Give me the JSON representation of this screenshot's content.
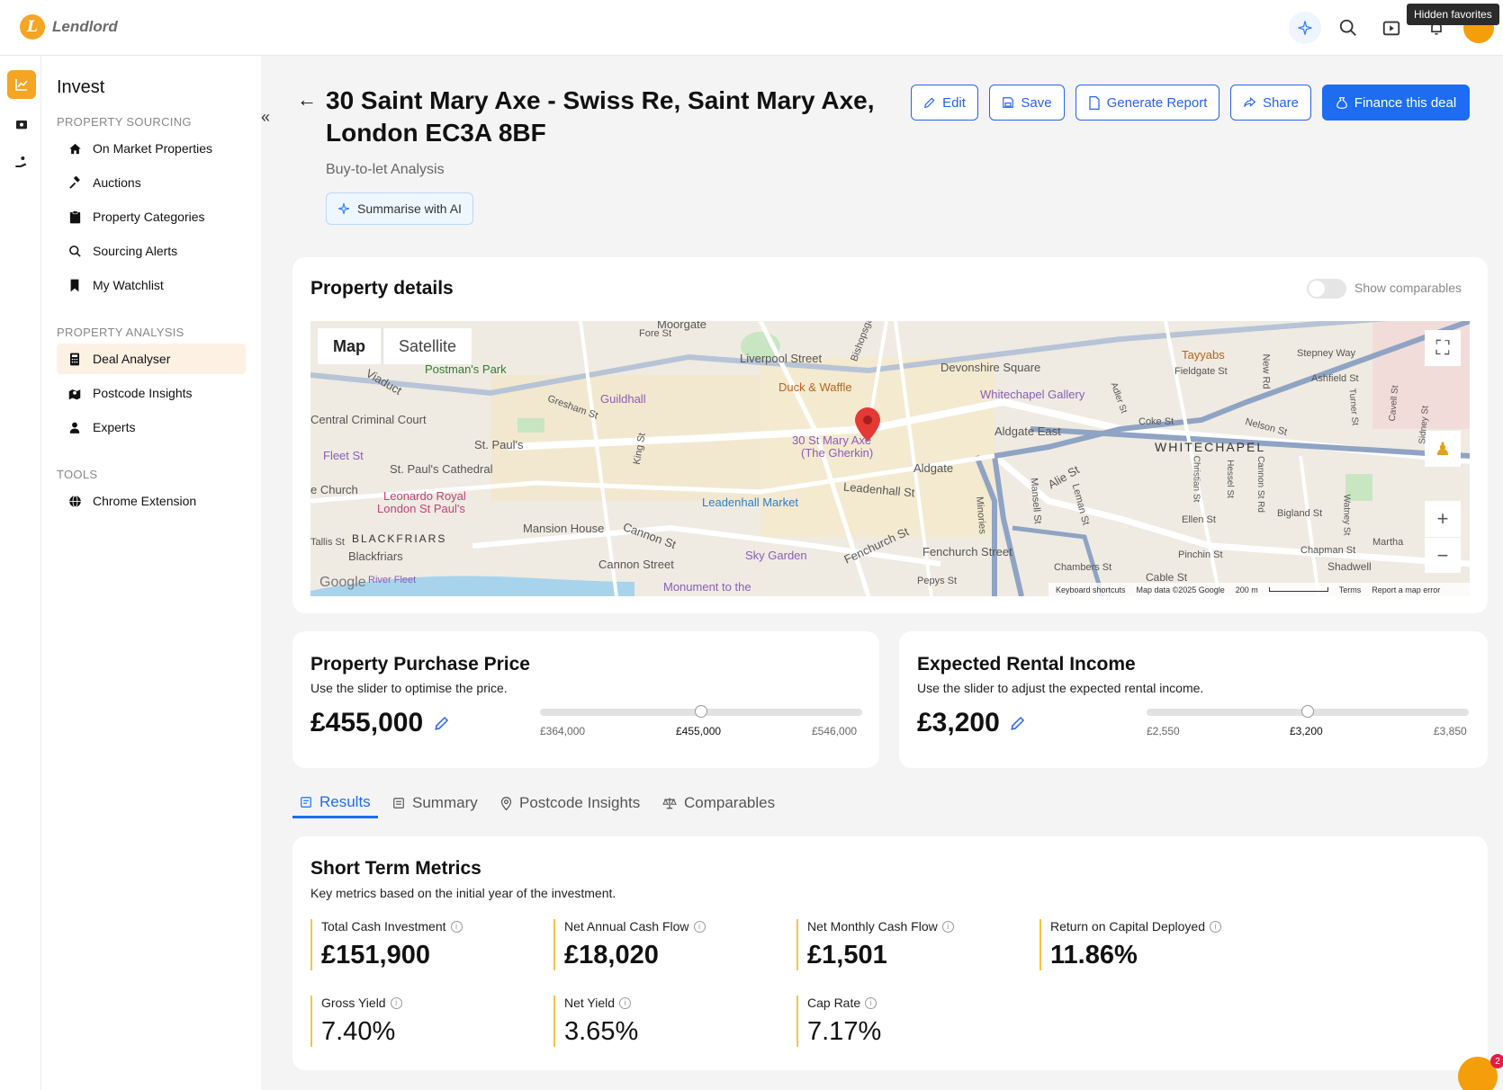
{
  "app": {
    "name": "Lendlord",
    "tooltip": "Hidden favorites"
  },
  "sidebar": {
    "title": "Invest",
    "sections": [
      {
        "label": "PROPERTY SOURCING",
        "items": [
          "On Market Properties",
          "Auctions",
          "Property Categories",
          "Sourcing Alerts",
          "My Watchlist"
        ]
      },
      {
        "label": "PROPERTY ANALYSIS",
        "items": [
          "Deal Analyser",
          "Postcode Insights",
          "Experts"
        ]
      },
      {
        "label": "TOOLS",
        "items": [
          "Chrome Extension"
        ]
      }
    ],
    "active_item": "Deal Analyser"
  },
  "header": {
    "title": "30 Saint Mary Axe - Swiss Re, Saint Mary Axe, London EC3A 8BF",
    "subtitle": "Buy-to-let Analysis",
    "ai_button": "Summarise with AI",
    "actions": [
      "Edit",
      "Save",
      "Generate Report",
      "Share",
      "Finance this deal"
    ]
  },
  "property_details": {
    "title": "Property details",
    "toggle_label": "Show comparables",
    "map_tabs": [
      "Map",
      "Satellite"
    ],
    "map_labels": [
      "Moorgate",
      "Fore St",
      "Liverpool Street",
      "Postman's Park",
      "Guildhall",
      "Gresham St",
      "Duck & Waffle",
      "Devonshire Square",
      "Whitechapel Gallery",
      "Tayyabs",
      "Fieldgate St",
      "Stepney Way",
      "New Rd",
      "Ashfield St",
      "Central Criminal Court",
      "St. Paul's",
      "St. Paul's Cathedral",
      "Fleet St",
      "King St",
      "30 St Mary Axe",
      "(The Gherkin)",
      "Aldgate East",
      "Aldgate",
      "Coke St",
      "Nelson St",
      "WHITECHAPEL",
      "Leadenhall St",
      "Leadenhall Market",
      "Alie St",
      "Leonardo Royal",
      "London St Paul's",
      "Mansion House",
      "Cannon St",
      "BLACKFRIARS",
      "Blackfriars",
      "Tallis St",
      "Sky Garden",
      "Fenchurch St",
      "Fenchurch Street",
      "Cannon Street",
      "Ellen St",
      "Bigland St",
      "Pinchin St",
      "Chapman St",
      "Shadwell",
      "Chambers St",
      "Cable St",
      "Pepys St",
      "River Fleet",
      "Monument to the",
      "Mansell St",
      "Leman St",
      "Minories",
      "Christian St",
      "Hessel St",
      "Cannon St Rd",
      "Watney St",
      "Martha",
      "Bishopsgate",
      "Adler St",
      "Turner St",
      "Cavell St",
      "Sidney St",
      "e Church",
      "Viaduct"
    ],
    "map_footer": [
      "Keyboard shortcuts",
      "Map data ©2025 Google",
      "200 m",
      "Terms",
      "Report a map error"
    ],
    "map_brand": "Google"
  },
  "purchase_price": {
    "title": "Property Purchase Price",
    "subtitle": "Use the slider to optimise the price.",
    "value": "£455,000",
    "min": "£364,000",
    "current": "£455,000",
    "max": "£546,000",
    "position": 0.5
  },
  "rental_income": {
    "title": "Expected Rental Income",
    "subtitle": "Use the slider to adjust the expected rental income.",
    "value": "£3,200",
    "min": "£2,550",
    "current": "£3,200",
    "max": "£3,850",
    "position": 0.5
  },
  "tabs": [
    "Results",
    "Summary",
    "Postcode Insights",
    "Comparables"
  ],
  "metrics": {
    "title": "Short Term Metrics",
    "subtitle": "Key metrics based on the initial year of the investment.",
    "items": [
      {
        "label": "Total Cash Investment",
        "value": "£151,900"
      },
      {
        "label": "Net Annual Cash Flow",
        "value": "£18,020"
      },
      {
        "label": "Net Monthly Cash Flow",
        "value": "£1,501"
      },
      {
        "label": "Return on Capital Deployed",
        "value": "11.86%"
      },
      {
        "label": "Gross Yield",
        "value": "7.40%"
      },
      {
        "label": "Net Yield",
        "value": "3.65%"
      },
      {
        "label": "Cap Rate",
        "value": "7.17%"
      }
    ]
  },
  "chat_badge": "2",
  "colors": {
    "brand": "#f5a524",
    "accent": "#1d6cf2",
    "metric_border": "#f5c542"
  }
}
